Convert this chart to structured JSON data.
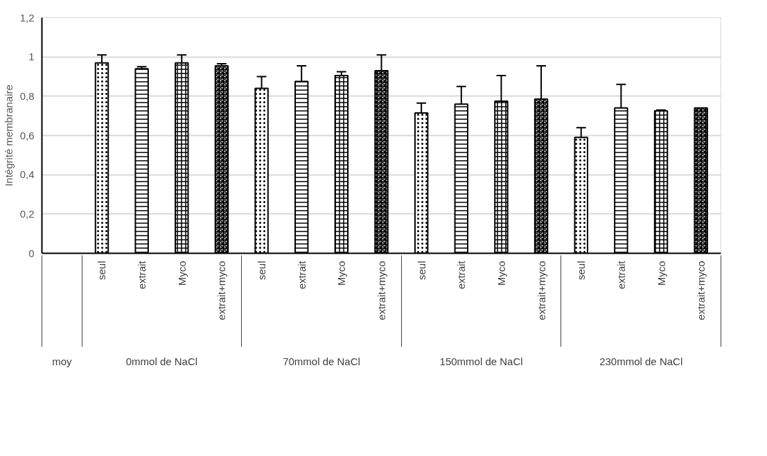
{
  "chart_data": {
    "type": "bar",
    "ylabel": "Intégrité membranaire",
    "categories": [
      null,
      "seul",
      "extrait",
      "Myco",
      "extrait+myco",
      "seul",
      "extrait",
      "Myco",
      "extrait+myco",
      "seul",
      "extrait",
      "Myco",
      "extrait+myco",
      "seul",
      "extrait",
      "Myco",
      "extrait+myco"
    ],
    "values": [
      null,
      0.97,
      0.94,
      0.97,
      0.955,
      0.84,
      0.875,
      0.905,
      0.93,
      0.715,
      0.76,
      0.775,
      0.785,
      0.59,
      0.74,
      0.725,
      0.74
    ],
    "errors": [
      null,
      0.04,
      0.01,
      0.04,
      0.01,
      0.06,
      0.08,
      0.02,
      0.08,
      0.05,
      0.09,
      0.13,
      0.17,
      0.05,
      0.12,
      0.005,
      null
    ],
    "color": "#ffffff",
    "annotations": [
      "moy",
      "0mmol de NaCl",
      "70mmol de NaCl",
      "150mmol de NaCl",
      "230mmol de NaCl"
    ],
    "ylim": [
      0,
      1.2
    ],
    "yticks": [
      0,
      {
        "value": 0.2,
        "label": "0,2"
      },
      {
        "value": 0.4,
        "label": "0,4"
      },
      {
        "value": 0.6,
        "label": "0,6"
      },
      {
        "value": 0.8,
        "label": "0,8"
      },
      1,
      {
        "value": 1.2,
        "label": "1,2"
      }
    ],
    "grid": "y"
  }
}
